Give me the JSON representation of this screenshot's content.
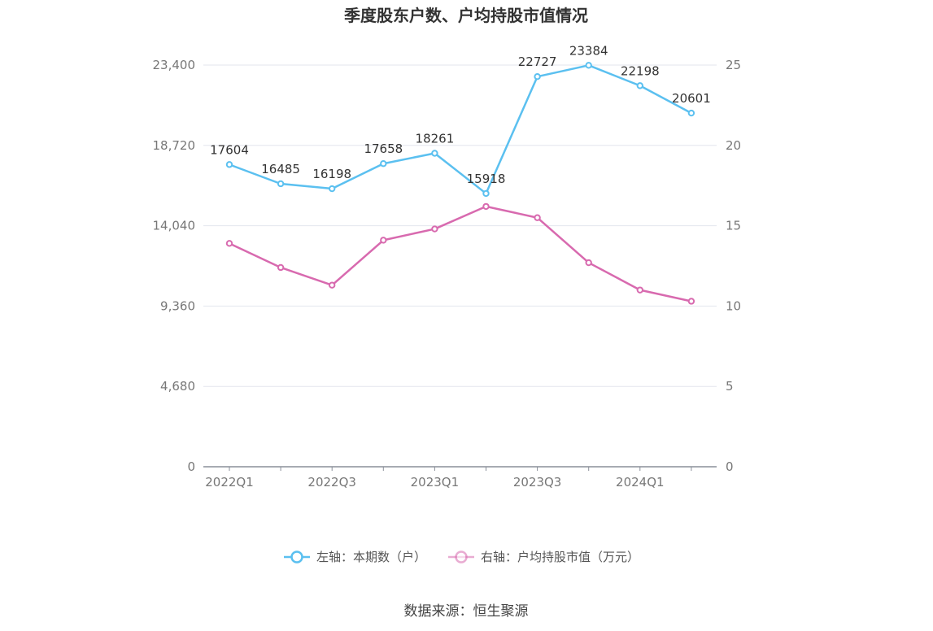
{
  "chart_data": {
    "type": "line",
    "title": "季度股东户数、户均持股市值情况",
    "categories": [
      "2022Q1",
      "2022Q2",
      "2022Q3",
      "2022Q4",
      "2023Q1",
      "2023Q2",
      "2023Q3",
      "2023Q4",
      "2024Q1",
      "2024Q2"
    ],
    "x_tick_labels": [
      "2022Q1",
      "2022Q3",
      "2023Q1",
      "2023Q3",
      "2024Q1"
    ],
    "left_axis": {
      "ylim": [
        0,
        23400
      ],
      "ticks": [
        "0",
        "4,680",
        "9,360",
        "14,040",
        "18,720",
        "23,400"
      ]
    },
    "right_axis": {
      "ylim": [
        0,
        25
      ],
      "ticks": [
        "0",
        "5",
        "10",
        "15",
        "20",
        "25"
      ]
    },
    "series": [
      {
        "name": "左轴：本期数（户）",
        "axis": "left",
        "color": "#5bc0f0",
        "values": [
          17604,
          16485,
          16198,
          17658,
          18261,
          15918,
          22727,
          23384,
          22198,
          20601
        ],
        "labels": [
          "17604",
          "16485",
          "16198",
          "17658",
          "18261",
          "15918",
          "22727",
          "23384",
          "22198",
          "20601"
        ]
      },
      {
        "name": "右轴：户均持股市值（万元）",
        "axis": "right",
        "color": "#d86aaf",
        "values": [
          13.9,
          12.4,
          11.3,
          14.1,
          14.8,
          16.2,
          15.5,
          12.7,
          11.0,
          10.3
        ]
      }
    ],
    "legend_position": "bottom",
    "grid": true
  },
  "source": "数据来源：恒生聚源"
}
